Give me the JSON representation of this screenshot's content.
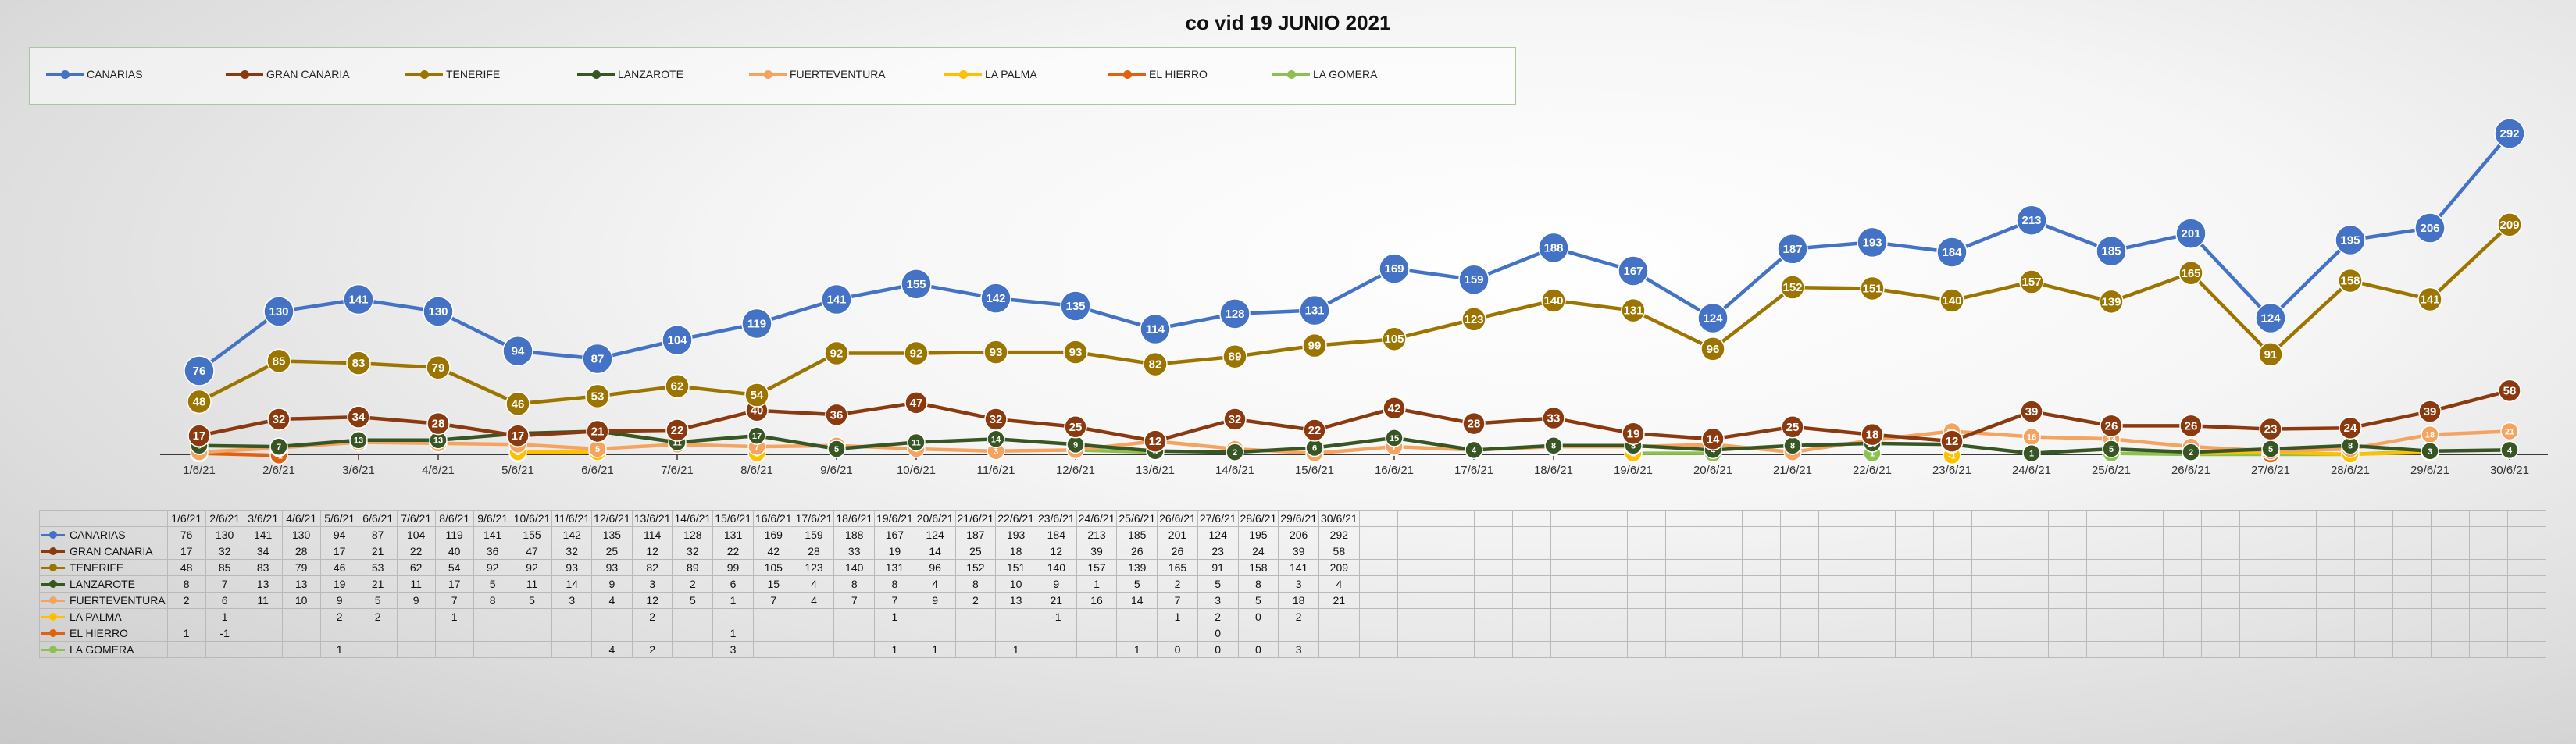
{
  "chart_data": {
    "type": "line",
    "title": "co vid 19 JUNIO 2021",
    "xlabel": "",
    "ylabel": "",
    "ylim": [
      -5,
      300
    ],
    "legend_position": "top",
    "categories": [
      "1/6/21",
      "2/6/21",
      "3/6/21",
      "4/6/21",
      "5/6/21",
      "6/6/21",
      "7/6/21",
      "8/6/21",
      "9/6/21",
      "10/6/21",
      "11/6/21",
      "12/6/21",
      "13/6/21",
      "14/6/21",
      "15/6/21",
      "16/6/21",
      "17/6/21",
      "18/6/21",
      "19/6/21",
      "20/6/21",
      "21/6/21",
      "22/6/21",
      "23/6/21",
      "24/6/21",
      "25/6/21",
      "26/6/21",
      "27/6/21",
      "28/6/21",
      "29/6/21",
      "30/6/21"
    ],
    "axis_tick_labels": [
      "1/6/21",
      "2/6/21",
      "3/6/21",
      "4/6/21",
      "5/6/21",
      "6/6/21",
      "7/6/21",
      "8/6/21",
      "9/6/21",
      "10/6/21",
      "11/6/21",
      "12/6/21",
      "13/6/21",
      "14/6/21",
      "15/6/21",
      "16/6/21",
      "17/6/21",
      "18/6/21",
      "19/6/21",
      "20/6/21",
      "21/6/21",
      "22/6/21",
      "23/6/21",
      "24/6/21",
      "25/6/21",
      "26/6/21",
      "27/6/21",
      "28/6/21",
      "29/6/21",
      "30/6/21"
    ],
    "table_headers": [
      "1/6/21",
      "2/6/21",
      "3/6/21",
      "4/6/21",
      "5/6/21",
      "6/6/21",
      "7/6/21",
      "8/6/21",
      "9/6/21",
      "10/6/21",
      "11/6/21",
      "12/6/21",
      "13/6/21",
      "14/6/21",
      "15/6/21",
      "16/6/21",
      "17/6/21",
      "18/6/21",
      "19/6/21",
      "20/6/21",
      "21/6/21",
      "22/6/21",
      "23/6/21",
      "24/6/21",
      "25/6/21",
      "26/6/21",
      "27/6/21",
      "28/6/21",
      "29/6/21",
      "30/6/21"
    ],
    "series": [
      {
        "name": "CANARIAS",
        "color": "#4472C4",
        "values": [
          76,
          130,
          141,
          130,
          94,
          87,
          104,
          119,
          141,
          155,
          142,
          135,
          114,
          128,
          131,
          169,
          159,
          188,
          167,
          124,
          187,
          193,
          184,
          213,
          185,
          201,
          124,
          195,
          206,
          292
        ]
      },
      {
        "name": "GRAN CANARIA",
        "color": "#8B3A0F",
        "values": [
          17,
          32,
          34,
          28,
          17,
          21,
          22,
          40,
          36,
          47,
          32,
          25,
          12,
          32,
          22,
          42,
          28,
          33,
          19,
          14,
          25,
          18,
          12,
          39,
          26,
          26,
          23,
          24,
          39,
          58
        ]
      },
      {
        "name": "TENERIFE",
        "color": "#9C7400",
        "values": [
          48,
          85,
          83,
          79,
          46,
          53,
          62,
          54,
          92,
          92,
          93,
          93,
          82,
          89,
          99,
          105,
          123,
          140,
          131,
          96,
          152,
          151,
          140,
          157,
          139,
          165,
          91,
          158,
          141,
          209
        ]
      },
      {
        "name": "LANZAROTE",
        "color": "#375623",
        "values": [
          8,
          7,
          13,
          13,
          19,
          21,
          11,
          17,
          5,
          11,
          14,
          9,
          3,
          2,
          6,
          15,
          4,
          8,
          8,
          4,
          8,
          10,
          9,
          1,
          5,
          2,
          5,
          8,
          3,
          4
        ]
      },
      {
        "name": "FUERTEVENTURA",
        "color": "#F4A460",
        "values": [
          2,
          6,
          11,
          10,
          9,
          5,
          9,
          7,
          8,
          5,
          3,
          4,
          12,
          5,
          1,
          7,
          4,
          7,
          7,
          9,
          2,
          13,
          21,
          16,
          14,
          7,
          3,
          5,
          18,
          21
        ]
      },
      {
        "name": "LA PALMA",
        "color": "#FFC000",
        "values": [
          null,
          1,
          null,
          null,
          2,
          2,
          null,
          1,
          null,
          null,
          null,
          null,
          2,
          null,
          null,
          null,
          null,
          null,
          1,
          null,
          null,
          null,
          -1,
          null,
          null,
          1,
          2,
          0,
          2,
          null
        ]
      },
      {
        "name": "EL HIERRO",
        "color": "#E0620F",
        "values": [
          1,
          -1,
          null,
          null,
          null,
          null,
          null,
          null,
          null,
          null,
          null,
          null,
          null,
          null,
          1,
          null,
          null,
          null,
          null,
          null,
          null,
          null,
          null,
          null,
          null,
          null,
          0,
          null,
          null,
          null
        ]
      },
      {
        "name": "LA GOMERA",
        "color": "#8CC152",
        "values": [
          null,
          null,
          null,
          null,
          1,
          null,
          null,
          null,
          null,
          null,
          null,
          4,
          2,
          null,
          3,
          null,
          null,
          null,
          1,
          1,
          null,
          1,
          null,
          null,
          1,
          0,
          0,
          0,
          3,
          null
        ]
      }
    ]
  }
}
